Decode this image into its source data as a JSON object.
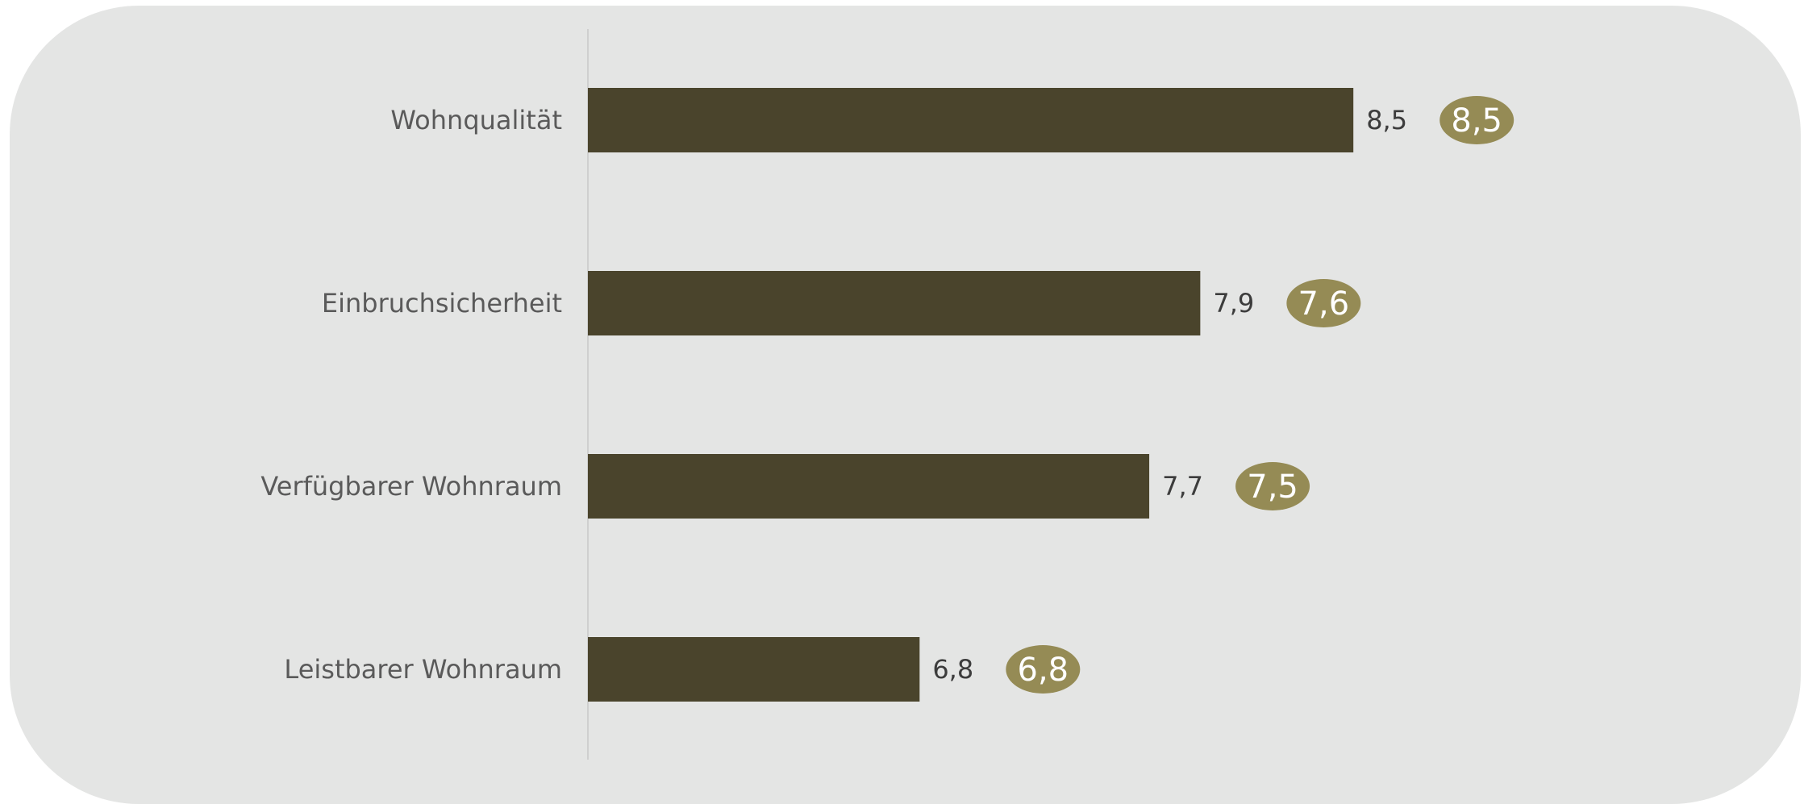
{
  "chart_data": {
    "type": "bar",
    "orientation": "horizontal",
    "categories": [
      "Wohnqualität",
      "Einbruchsicherheit",
      "Verfügbarer Wohnraum",
      "Leistbarer Wohnraum"
    ],
    "values": [
      8.5,
      7.9,
      7.7,
      6.8
    ],
    "value_labels": [
      "8,5",
      "7,9",
      "7,7",
      "6,8"
    ],
    "comparison_values": [
      8.5,
      7.6,
      7.5,
      6.8
    ],
    "comparison_labels": [
      "8,5",
      "7,6",
      "7,5",
      "6,8"
    ],
    "xlim": [
      5.5,
      8.79
    ],
    "title": "",
    "xlabel": "",
    "ylabel": "",
    "grid": false,
    "colors": {
      "bar": "#4a442c",
      "badge": "#958b55",
      "background": "#e4e5e4",
      "axis": "#c8c8c8"
    }
  }
}
